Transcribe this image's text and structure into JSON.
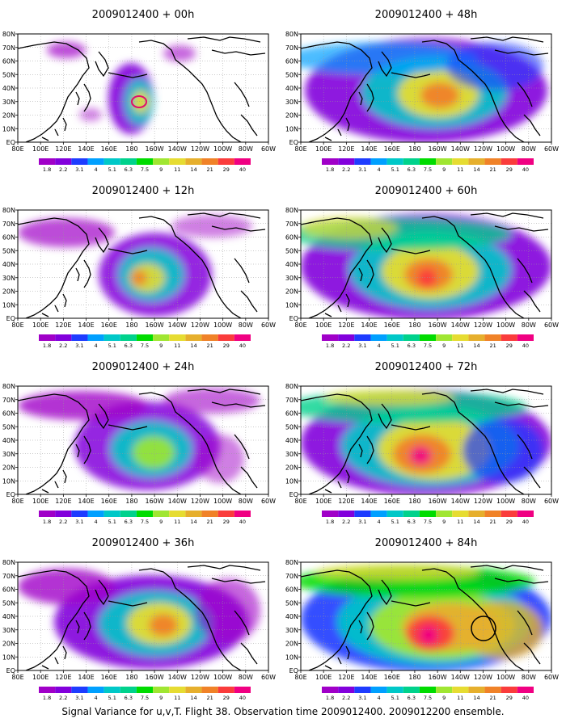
{
  "caption": "Signal Variance for u,v,T. Flight 38. Observation time 2009012400. 2009012200 ensemble.",
  "lat_labels": [
    "EQ",
    "10N",
    "20N",
    "30N",
    "40N",
    "50N",
    "60N",
    "70N",
    "80N"
  ],
  "lon_labels": [
    "80E",
    "100E",
    "120E",
    "140E",
    "160E",
    "180",
    "160W",
    "140W",
    "120W",
    "100W",
    "80W",
    "60W"
  ],
  "colorbar": {
    "levels": [
      "1.8",
      "2.2",
      "3.1",
      "4",
      "5.1",
      "6.3",
      "7.5",
      "9",
      "11",
      "14",
      "21",
      "29",
      "40"
    ],
    "colors": [
      "#a000c8",
      "#8200dc",
      "#1e3cff",
      "#00a0ff",
      "#00c8c8",
      "#00d28c",
      "#00dc00",
      "#a0e632",
      "#e6dc32",
      "#e6af2d",
      "#f08228",
      "#fa3c3c",
      "#f00082"
    ]
  },
  "panels": [
    {
      "title": "2009012400 + 00h",
      "lead_hours": 0
    },
    {
      "title": "2009012400 + 48h",
      "lead_hours": 48
    },
    {
      "title": "2009012400 + 12h",
      "lead_hours": 12
    },
    {
      "title": "2009012400 + 60h",
      "lead_hours": 60
    },
    {
      "title": "2009012400 + 24h",
      "lead_hours": 24
    },
    {
      "title": "2009012400 + 72h",
      "lead_hours": 72
    },
    {
      "title": "2009012400 + 36h",
      "lead_hours": 36
    },
    {
      "title": "2009012400 + 84h",
      "lead_hours": 84
    }
  ]
}
